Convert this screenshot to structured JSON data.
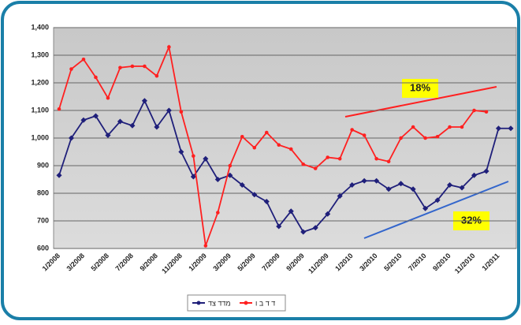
{
  "chart_data": {
    "type": "line",
    "categories": [
      "1/2008",
      null,
      "3/2008",
      null,
      "5/2008",
      null,
      "7/2008",
      null,
      "9/2008",
      null,
      "11/2008",
      null,
      "1/2009",
      null,
      "3/2009",
      null,
      "5/2009",
      null,
      "7/2009",
      null,
      "9/2009",
      null,
      "11/2009",
      null,
      "1/2010",
      null,
      "3/2010",
      null,
      "5/2010",
      null,
      "7/2010",
      null,
      "9/2010",
      null,
      "11/2010",
      null,
      "1/2011",
      null
    ],
    "series": [
      {
        "name": "מדד צד",
        "color": "#1f1f7a",
        "values": [
          865,
          1000,
          1065,
          1080,
          1010,
          1060,
          1045,
          1135,
          1040,
          1100,
          950,
          860,
          925,
          850,
          865,
          830,
          795,
          770,
          680,
          735,
          660,
          675,
          725,
          790,
          830,
          845,
          845,
          815,
          835,
          815,
          745,
          775,
          830,
          820,
          865,
          880,
          1035,
          1035
        ]
      },
      {
        "name": "ד ד ב ו",
        "color": "#ff2020",
        "values": [
          1105,
          1250,
          1285,
          1220,
          1145,
          1255,
          1260,
          1260,
          1225,
          1330,
          1095,
          935,
          610,
          730,
          900,
          1005,
          965,
          1020,
          975,
          960,
          905,
          890,
          930,
          925,
          1030,
          1010,
          925,
          915,
          1000,
          1040,
          1000,
          1005,
          1040,
          1040,
          1100,
          1095,
          null,
          null
        ]
      }
    ],
    "ylim": [
      600,
      1400
    ],
    "yticks": [
      600,
      700,
      800,
      900,
      {
        "value": 1000,
        "label": "1,000"
      },
      {
        "value": 1100,
        "label": "1,100"
      },
      {
        "value": 1200,
        "label": "1,200"
      },
      {
        "value": 1300,
        "label": "1,300"
      },
      {
        "value": 1400,
        "label": "1,400"
      }
    ],
    "grid": true,
    "legend": "bottom",
    "annotations": [
      "18%",
      "32%"
    ]
  }
}
